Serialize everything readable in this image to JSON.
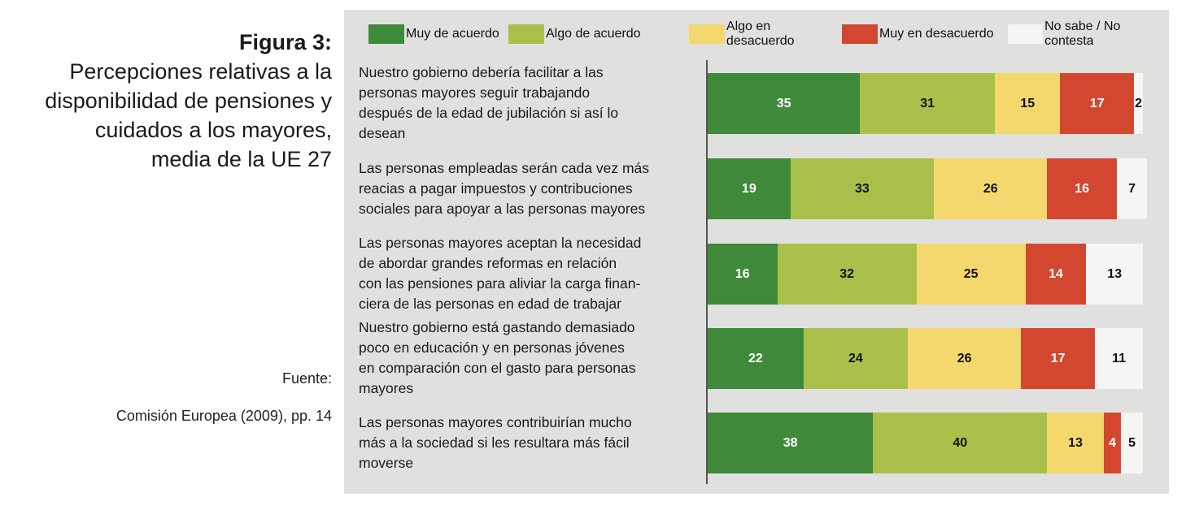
{
  "figure": {
    "label": "Figura 3:",
    "title_lines": [
      "Percepciones relativas a la",
      "disponibilidad de pensiones y",
      "cuidados a los mayores,",
      "media de la UE 27"
    ],
    "source_label": "Fuente:",
    "source": "Comisión Europea (2009), pp. 14"
  },
  "chart_data": {
    "type": "bar",
    "orientation": "horizontal",
    "stacked": true,
    "legend_position": "top",
    "grid": false,
    "categories": [
      "Nuestro gobierno debería facilitar a las personas mayores seguir trabajando después de la edad de jubilación si así lo desean",
      "Las personas empleadas serán cada vez más reacias a pagar impuestos y contribuciones sociales para apoyar a las personas mayores",
      "Las personas mayores aceptan la necesidad de abordar grandes reformas en relación con las pensiones para aliviar la carga financiera de las personas en edad de trabajar",
      "Nuestro gobierno está gastando demasiado poco en educación y en personas jóvenes en comparación con el gasto para personas mayores",
      "Las personas mayores contribuirían mucho más a la sociedad si les resultara más fácil moverse"
    ],
    "category_lines": [
      [
        "Nuestro gobierno debería facilitar a las",
        "personas mayores seguir trabajando",
        "después de la edad de jubilación si así lo",
        "desean"
      ],
      [
        "Las personas empleadas serán cada vez más",
        "reacias a pagar impuestos y contribuciones",
        "sociales para apoyar a las personas mayores"
      ],
      [
        "Las personas mayores aceptan la necesidad",
        "de abordar grandes reformas en relación",
        "con las pensiones para aliviar la carga finan-",
        "ciera de las personas en edad de trabajar"
      ],
      [
        "Nuestro gobierno está gastando demasiado",
        "poco en educación y en personas jóvenes",
        "en comparación con el gasto para personas",
        "mayores"
      ],
      [
        "Las personas mayores contribuirían mucho",
        "más a la sociedad si les resultara más fácil",
        "moverse"
      ]
    ],
    "series": [
      {
        "name": "Muy de acuerdo",
        "color": "#3f8a3a",
        "text_color": "#ffffff",
        "values": [
          35,
          19,
          16,
          22,
          38
        ]
      },
      {
        "name": "Algo de acuerdo",
        "color": "#a9c14a",
        "text_color": "#111111",
        "values": [
          31,
          33,
          32,
          24,
          40
        ]
      },
      {
        "name": "Algo en desacuerdo",
        "color": "#f4d86e",
        "text_color": "#111111",
        "values": [
          15,
          26,
          25,
          26,
          13
        ]
      },
      {
        "name": "Muy en desacuerdo",
        "color": "#d3462f",
        "text_color": "#ffffff",
        "values": [
          17,
          16,
          14,
          17,
          4
        ]
      },
      {
        "name": "No sabe / No contesta",
        "color": "#f5f5f4",
        "text_color": "#111111",
        "values": [
          2,
          7,
          13,
          11,
          5
        ]
      }
    ]
  }
}
